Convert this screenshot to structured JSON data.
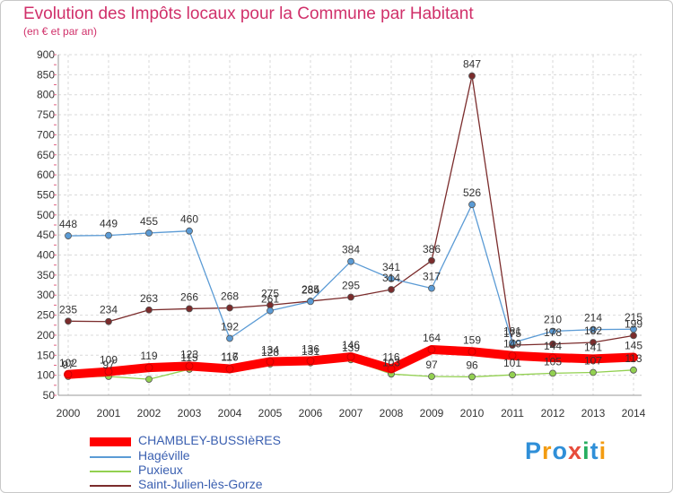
{
  "chart_data": {
    "type": "line",
    "title": "Evolution des Impôts locaux pour la Commune par Habitant",
    "subtitle": "(en € et par an)",
    "xlabel": "",
    "ylabel": "",
    "ylim": [
      50,
      900
    ],
    "yticks": [
      "50",
      "100",
      "150",
      "200",
      "250",
      "300",
      "350",
      "400",
      "450",
      "500",
      "550",
      "600",
      "650",
      "700",
      "750",
      "800",
      "850",
      "900"
    ],
    "categories": [
      "2000",
      "2001",
      "2002",
      "2003",
      "2004",
      "2005",
      "2006",
      "2007",
      "2008",
      "2009",
      "2010",
      "2011",
      "2012",
      "2013",
      "2014"
    ],
    "series": [
      {
        "name": "CHAMBLEY-BUSSIèRES",
        "color": "#ff0000",
        "values": [
          102,
          109,
          119,
          123,
          116,
          134,
          136,
          146,
          116,
          164,
          159,
          149,
          144,
          141,
          145
        ],
        "labels": [
          "102",
          "109",
          "119",
          "123",
          "116",
          "134",
          "136",
          "146",
          "116",
          "164",
          "159",
          "149",
          "144",
          "141",
          "145"
        ]
      },
      {
        "name": "Hagéville",
        "color": "#5b9bd5",
        "values": [
          448,
          449,
          455,
          460,
          192,
          261,
          284,
          384,
          341,
          317,
          526,
          181,
          210,
          214,
          215
        ],
        "labels": [
          "448",
          "449",
          "455",
          "460",
          "192",
          "261",
          "284",
          "384",
          "341",
          "317",
          "526",
          "181",
          "210",
          "214",
          "215"
        ]
      },
      {
        "name": "Puxieux",
        "color": "#92d050",
        "values": [
          97,
          97,
          90,
          115,
          117,
          128,
          131,
          139,
          103,
          97,
          96,
          101,
          105,
          107,
          113
        ],
        "labels": [
          "97",
          "97",
          "",
          "115",
          "117",
          "128",
          "131",
          "139",
          "103",
          "97",
          "96",
          "101",
          "105",
          "107",
          "113"
        ]
      },
      {
        "name": "Saint-Julien-lès-Gorze",
        "color": "#7b2c2c",
        "values": [
          235,
          234,
          263,
          266,
          268,
          275,
          285,
          295,
          314,
          386,
          847,
          175,
          178,
          182,
          199
        ],
        "labels": [
          "235",
          "234",
          "263",
          "266",
          "268",
          "275",
          "285",
          "295",
          "314",
          "386",
          "847",
          "175",
          "178",
          "182",
          "199"
        ]
      }
    ]
  },
  "logo": {
    "text": "Proxiti"
  }
}
